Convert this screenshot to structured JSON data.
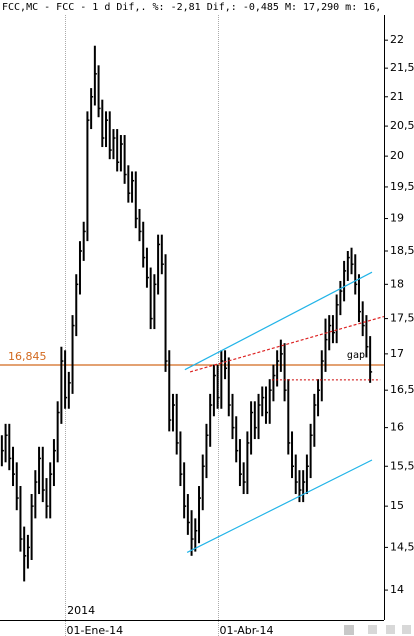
{
  "chart_data": {
    "type": "ohlc",
    "title": "FCC,MC - FCC -  1 d Dif,. %: -2,81 Dif,: -0,485 M: 17,290 m: 16,",
    "year_label": "2014",
    "categories": [
      null,
      null,
      null,
      null,
      null,
      null,
      null,
      null,
      null,
      null,
      null,
      null,
      null,
      null,
      null,
      null,
      null,
      "01-Ene-14",
      null,
      null,
      null,
      null,
      null,
      null,
      null,
      null,
      null,
      null,
      null,
      null,
      null,
      null,
      null,
      null,
      null,
      null,
      null,
      null,
      null,
      null,
      null,
      null,
      null,
      null,
      null,
      null,
      null,
      null,
      null,
      null,
      null,
      null,
      null,
      null,
      null,
      null,
      null,
      null,
      "01-Abr-14",
      null,
      null,
      null,
      null,
      null,
      null,
      null,
      null,
      null,
      null,
      null,
      null,
      null,
      null,
      null,
      null,
      null,
      null,
      null,
      null,
      null,
      null,
      null,
      null,
      null,
      null,
      null,
      null,
      null,
      null,
      null,
      null,
      null,
      null,
      null,
      null,
      null,
      null,
      null,
      null,
      null
    ],
    "high": [
      15.9,
      16.05,
      16.05,
      15.75,
      15.55,
      15.25,
      14.75,
      14.65,
      15.15,
      15.45,
      15.75,
      15.75,
      15.35,
      15.55,
      15.85,
      16.35,
      17.1,
      17.05,
      16.75,
      17.55,
      18.15,
      18.65,
      18.95,
      20.75,
      21.15,
      21.9,
      21.55,
      20.95,
      20.75,
      20.75,
      20.45,
      20.45,
      20.35,
      20.35,
      19.85,
      19.75,
      19.75,
      19.15,
      18.95,
      18.55,
      18.25,
      18.15,
      18.75,
      18.75,
      18.45,
      17.05,
      16.45,
      16.45,
      15.95,
      15.55,
      15.15,
      14.95,
      14.85,
      15.25,
      15.65,
      16.05,
      16.45,
      16.85,
      16.85,
      17.05,
      17.05,
      16.95,
      16.45,
      16.15,
      15.85,
      15.55,
      15.95,
      16.35,
      16.35,
      16.45,
      16.55,
      16.55,
      16.65,
      16.85,
      17.05,
      17.2,
      17.15,
      16.65,
      15.95,
      15.65,
      15.45,
      15.45,
      15.65,
      16.05,
      16.45,
      16.65,
      17.05,
      17.5,
      17.55,
      17.55,
      17.85,
      18.05,
      18.35,
      18.5,
      18.55,
      18.45,
      18.15,
      17.75,
      17.55,
      17.25
    ],
    "low": [
      15.5,
      15.55,
      15.45,
      15.25,
      14.95,
      14.45,
      14.1,
      14.25,
      14.35,
      14.85,
      15.15,
      15.05,
      14.85,
      14.85,
      15.25,
      15.55,
      16.05,
      16.25,
      16.25,
      16.45,
      17.25,
      17.85,
      18.35,
      18.65,
      20.45,
      20.85,
      20.65,
      20.15,
      20.15,
      19.95,
      19.95,
      19.75,
      19.75,
      19.55,
      19.25,
      19.25,
      18.85,
      18.65,
      18.25,
      17.95,
      17.35,
      17.35,
      17.85,
      18.15,
      16.75,
      15.95,
      15.95,
      15.65,
      15.25,
      14.85,
      14.65,
      14.4,
      14.45,
      14.55,
      14.95,
      15.35,
      15.75,
      16.15,
      16.25,
      16.25,
      16.65,
      16.15,
      15.85,
      15.55,
      15.25,
      15.15,
      15.15,
      15.65,
      15.85,
      15.85,
      16.15,
      16.05,
      16.05,
      16.35,
      16.55,
      16.75,
      16.35,
      15.65,
      15.35,
      15.15,
      15.05,
      15.05,
      15.15,
      15.35,
      15.75,
      16.15,
      16.35,
      16.75,
      17.05,
      17.15,
      17.15,
      17.55,
      17.75,
      18.05,
      18.15,
      17.85,
      17.45,
      17.25,
      16.95,
      16.6
    ],
    "close": [
      15.7,
      15.9,
      15.6,
      15.4,
      15.1,
      14.6,
      14.4,
      14.5,
      15.0,
      15.3,
      15.6,
      15.2,
      15.0,
      15.4,
      15.7,
      16.2,
      16.9,
      16.4,
      16.6,
      17.4,
      18.0,
      18.5,
      18.8,
      20.6,
      21.0,
      21.4,
      20.8,
      20.3,
      20.6,
      20.1,
      20.3,
      19.9,
      20.2,
      19.7,
      19.4,
      19.6,
      19.0,
      18.8,
      18.4,
      18.1,
      17.5,
      18.0,
      18.6,
      18.3,
      16.9,
      16.1,
      16.3,
      15.8,
      15.4,
      15.0,
      14.8,
      14.6,
      14.7,
      15.1,
      15.5,
      15.9,
      16.3,
      16.7,
      16.4,
      16.9,
      16.8,
      16.3,
      16.0,
      15.7,
      15.4,
      15.3,
      15.8,
      16.2,
      16.0,
      16.3,
      16.4,
      16.2,
      16.5,
      16.7,
      16.9,
      17.0,
      16.5,
      15.8,
      15.5,
      15.3,
      15.2,
      15.3,
      15.5,
      15.9,
      16.3,
      16.5,
      16.9,
      17.2,
      17.4,
      17.3,
      17.7,
      17.9,
      18.2,
      18.4,
      18.3,
      18.0,
      17.6,
      17.4,
      17.1,
      16.75
    ],
    "color": "#000000",
    "log_scale": true,
    "ylim": [
      13.66,
      22.46
    ],
    "yticks": [
      14,
      {
        "value": 14.5,
        "label": "14,5"
      },
      15,
      {
        "value": 15.5,
        "label": "15,5"
      },
      16,
      {
        "value": 16.5,
        "label": "16,5"
      },
      17,
      {
        "value": 17.5,
        "label": "17,5"
      },
      18,
      {
        "value": 18.5,
        "label": "18,5"
      },
      19,
      {
        "value": 19.5,
        "label": "19,5"
      },
      20,
      {
        "value": 20.5,
        "label": "20,5"
      },
      21,
      {
        "value": 21.5,
        "label": "21,5"
      },
      22
    ],
    "hline": {
      "value": 16.845,
      "label": "16,845",
      "color": "#d2691e"
    },
    "level_line": {
      "from": 72.6,
      "to": 101.7,
      "value": 16.64,
      "label": "gap",
      "color": "#cc0000"
    },
    "trendlines": [
      {
        "color": "#22b4e8",
        "points": [
          [
            49.2,
            16.78
          ],
          [
            99.5,
            18.18
          ]
        ]
      },
      {
        "color": "#22b4e8",
        "points": [
          [
            49.8,
            14.44
          ],
          [
            99.5,
            15.58
          ]
        ]
      },
      {
        "color": "#dd2222",
        "dashed": true,
        "points": [
          [
            50.6,
            16.75
          ],
          [
            102.7,
            17.53
          ]
        ]
      }
    ]
  }
}
